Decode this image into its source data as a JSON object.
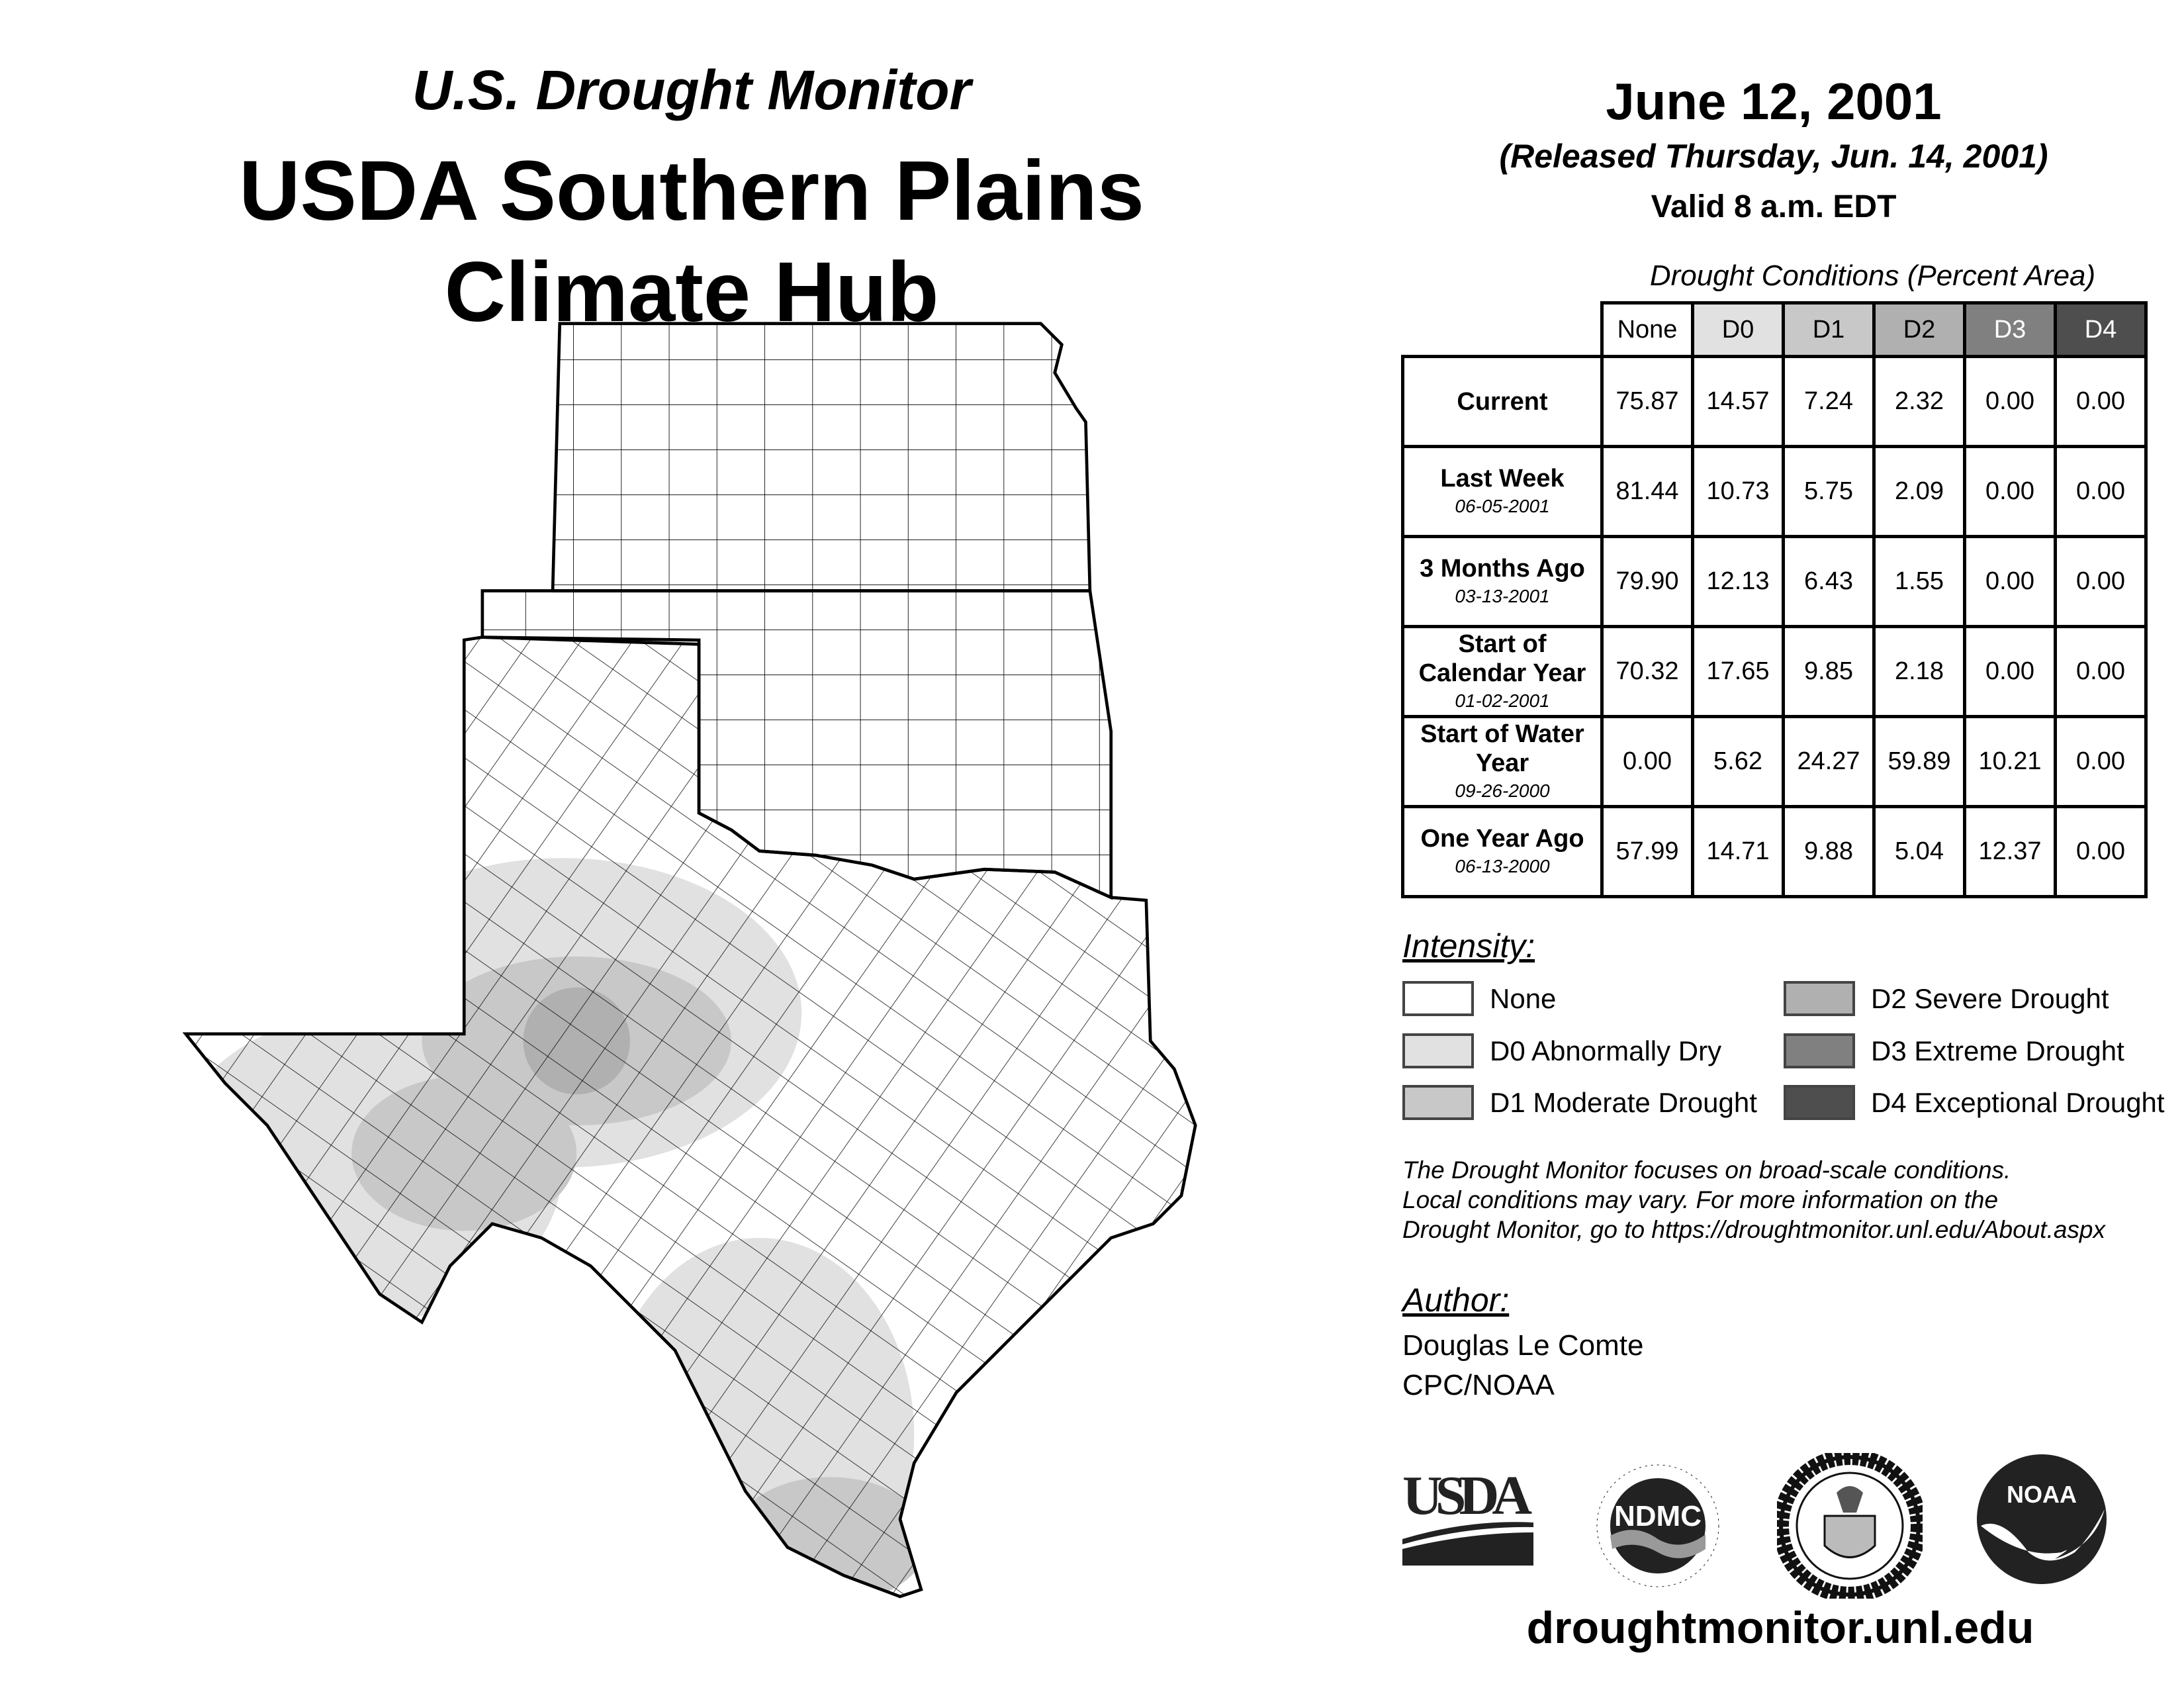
{
  "title": {
    "line1": "U.S. Drought Monitor",
    "line2": "USDA Southern Plains",
    "line3": "Climate Hub"
  },
  "date": {
    "map_date": "June 12, 2001",
    "released": "(Released Thursday, Jun. 14, 2001)",
    "valid": "Valid 8 a.m. EDT"
  },
  "table": {
    "caption": "Drought Conditions (Percent Area)",
    "headers": [
      "None",
      "D0",
      "D1",
      "D2",
      "D3",
      "D4"
    ],
    "rows": [
      {
        "label": "Current",
        "date": "",
        "values": [
          "75.87",
          "14.57",
          "7.24",
          "2.32",
          "0.00",
          "0.00"
        ]
      },
      {
        "label": "Last Week",
        "date": "06-05-2001",
        "values": [
          "81.44",
          "10.73",
          "5.75",
          "2.09",
          "0.00",
          "0.00"
        ]
      },
      {
        "label": "3 Months Ago",
        "date": "03-13-2001",
        "values": [
          "79.90",
          "12.13",
          "6.43",
          "1.55",
          "0.00",
          "0.00"
        ]
      },
      {
        "label": "Start of Calendar Year",
        "date": "01-02-2001",
        "values": [
          "70.32",
          "17.65",
          "9.85",
          "2.18",
          "0.00",
          "0.00"
        ]
      },
      {
        "label": "Start of Water Year",
        "date": "09-26-2000",
        "values": [
          "0.00",
          "5.62",
          "24.27",
          "59.89",
          "10.21",
          "0.00"
        ]
      },
      {
        "label": "One Year Ago",
        "date": "06-13-2000",
        "values": [
          "57.99",
          "14.71",
          "9.88",
          "5.04",
          "12.37",
          "0.00"
        ]
      }
    ]
  },
  "legend": {
    "title": "Intensity:",
    "items": [
      {
        "label": "None",
        "color": "#ffffff"
      },
      {
        "label": "D0 Abnormally Dry",
        "color": "#e1e1e1"
      },
      {
        "label": "D1 Moderate Drought",
        "color": "#c8c8c8"
      },
      {
        "label": "D2 Severe Drought",
        "color": "#b0b0b0"
      },
      {
        "label": "D3 Extreme Drought",
        "color": "#808080"
      },
      {
        "label": "D4 Exceptional Drought",
        "color": "#4e4e4e"
      }
    ]
  },
  "note": [
    "The Drought Monitor focuses on broad-scale conditions.",
    "Local conditions may vary. For more information on the",
    "Drought Monitor, go to https://droughtmonitor.unl.edu/About.aspx"
  ],
  "author": {
    "title": "Author:",
    "name": "Douglas Le Comte",
    "org": "CPC/NOAA"
  },
  "logos": {
    "usda": "USDA",
    "ndmc": "NDMC",
    "ndmc_ring_top": "NATIONAL DROUGHT MITIGATION CENTER",
    "ndmc_ring_bottom": "UNIVERSITY OF NEBRASKA",
    "doc_ring": "DEPARTMENT OF COMMERCE · UNITED STATES OF AMERICA",
    "noaa": "NOAA"
  },
  "footer_url": "droughtmonitor.unl.edu"
}
